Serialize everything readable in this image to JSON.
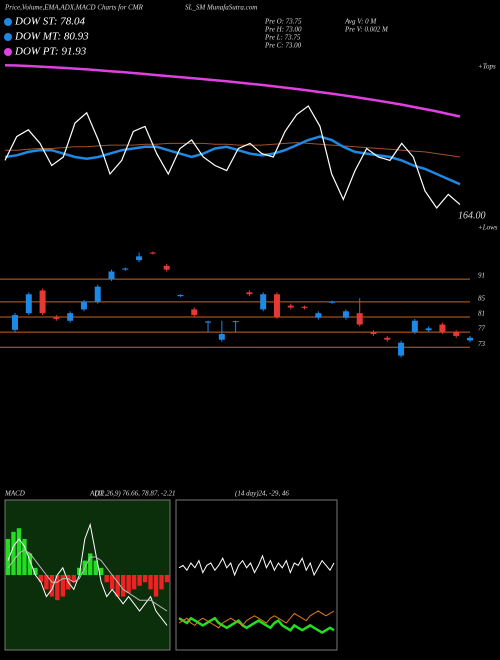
{
  "header": {
    "title": "Price,Volume,EMA,ADX,MACD Charts for CMR",
    "site": "SL_SM MunafaSutra.com",
    "legend": [
      {
        "label": "DOW ST: 78.04",
        "color": "#1e88e5"
      },
      {
        "label": "DOW MT: 80.93",
        "color": "#1e88e5"
      },
      {
        "label": "DOW PT: 91.93",
        "color": "#e040e0"
      }
    ],
    "info": [
      "Pre O: 73.75",
      "Pre H: 73.00",
      "Pre L: 73.75",
      "Pre C: 73.00",
      "Avg V: 0 M",
      "Pre V: 0.002 M"
    ]
  },
  "chart_data": [
    {
      "type": "line",
      "annotations": [
        "164.00",
        "+Tops",
        "+Lows"
      ],
      "ylim": [
        0,
        100
      ],
      "series": [
        {
          "color": "#e040e0",
          "width": 2.5,
          "values": [
            94,
            93.8,
            93.5,
            93.2,
            92.8,
            92.4,
            92,
            91.5,
            91,
            90.5,
            90,
            89.4,
            88.8,
            88.2,
            87.6,
            87,
            86.4,
            85.8,
            85.2,
            84.5,
            83.8,
            83.1,
            82.4,
            81.6,
            80.8,
            80,
            79.1,
            78.2,
            77.3,
            76.3,
            75.3,
            74.2,
            73.1,
            72,
            70.8,
            69.5,
            68.2,
            66.8,
            65.3,
            63.8
          ]
        },
        {
          "color": "#a0522d",
          "width": 1,
          "values": [
            44,
            44,
            44.5,
            45,
            45,
            45.5,
            46,
            46,
            46.5,
            47,
            47,
            47,
            47.5,
            47.5,
            48,
            48,
            48,
            48,
            47.5,
            47.5,
            47,
            47,
            47,
            47.5,
            48,
            48.5,
            48,
            47.5,
            47,
            46.5,
            46,
            45.5,
            45,
            44.5,
            44,
            43.5,
            43,
            42,
            41,
            40
          ]
        },
        {
          "color": "#1e88e5",
          "width": 2.5,
          "values": [
            40,
            41,
            43,
            44,
            44,
            42,
            40,
            39,
            40,
            42,
            44,
            45,
            46,
            46,
            44,
            42,
            40,
            42,
            45,
            46,
            44,
            42,
            41,
            42,
            44,
            47,
            50,
            52,
            50,
            46,
            43,
            42,
            41,
            40,
            38,
            35,
            33,
            30,
            27,
            24
          ]
        },
        {
          "color": "#ffffff",
          "width": 1.2,
          "values": [
            38,
            52,
            56,
            48,
            35,
            40,
            60,
            66,
            50,
            30,
            38,
            55,
            58,
            42,
            30,
            45,
            50,
            40,
            35,
            32,
            45,
            48,
            42,
            40,
            55,
            65,
            70,
            58,
            30,
            15,
            32,
            45,
            40,
            38,
            48,
            40,
            20,
            10,
            18,
            12
          ]
        }
      ]
    },
    {
      "type": "candlestick",
      "ylim": [
        67,
        100
      ],
      "yticks": [
        91,
        85,
        81,
        77,
        73
      ],
      "grid_color": "#c8641e",
      "up_color": "#1e88e5",
      "down_color": "#e53935",
      "open": [
        77.6,
        82,
        88,
        81,
        80,
        83,
        85,
        91,
        93.5,
        96,
        98,
        94.5,
        86.5,
        83,
        79.5,
        75,
        79.8,
        87.5,
        83,
        87,
        84,
        83.7,
        80.8,
        84.8,
        80.8,
        82,
        77,
        75.5,
        70.8,
        77,
        77.5,
        79,
        77,
        74.8
      ],
      "close": [
        81.5,
        87,
        82,
        80.5,
        82,
        85,
        89,
        93,
        93.8,
        97,
        97.8,
        93.5,
        86.8,
        81.5,
        79.8,
        76.5,
        79.9,
        87,
        87,
        81,
        83.5,
        83.4,
        82,
        85,
        82.5,
        79,
        76.5,
        75,
        74.2,
        80,
        78,
        77,
        76,
        75.5
      ],
      "high": [
        82,
        87.5,
        88.5,
        81.5,
        82.5,
        85.5,
        89.5,
        93.5,
        94,
        98,
        98.3,
        95,
        87,
        83.5,
        80,
        80,
        80,
        88,
        87.5,
        87.5,
        84.5,
        84,
        82.5,
        85.3,
        83,
        86,
        77.5,
        76,
        74.7,
        80.5,
        78.5,
        79.5,
        77.5,
        76
      ],
      "low": [
        77,
        81.5,
        81.5,
        80,
        79.5,
        82.5,
        84.5,
        90.5,
        93.2,
        95.5,
        97.5,
        93,
        86.3,
        81,
        77,
        74.5,
        77,
        86.5,
        82.5,
        80.5,
        83,
        83,
        80.3,
        84.5,
        80.3,
        78.5,
        76,
        74.5,
        70.3,
        76.5,
        77,
        76.5,
        75.5,
        74.3
      ]
    },
    {
      "type": "macd",
      "title": "MACD",
      "subtitle": "(12,26,9) 76.66, 78.87, -2.21",
      "ylim": [
        -10,
        10
      ],
      "up_color": "#22dd22",
      "down_color": "#ee2222",
      "series": [
        {
          "style": "bar",
          "values": [
            5,
            6,
            6.5,
            5,
            3,
            1,
            -1,
            -2,
            -3,
            -3.5,
            -3,
            -2,
            -1,
            1,
            2,
            3,
            2,
            1,
            -1,
            -2,
            -3,
            -3,
            -2.5,
            -2,
            -1.5,
            -1,
            -2,
            -3,
            -2,
            -1
          ]
        },
        {
          "style": "line",
          "color": "#ffffff",
          "values": [
            2,
            4,
            5,
            4,
            2,
            0,
            -1,
            -3,
            -2,
            0,
            1,
            -1,
            -2,
            0,
            5,
            7,
            3,
            -1,
            -3,
            -2,
            -3,
            -4,
            -3,
            -4,
            -5,
            -4,
            -3,
            -5,
            -6,
            -7
          ]
        },
        {
          "style": "line",
          "color": "#bbbbbb",
          "values": [
            1,
            2,
            3,
            3.5,
            3,
            2,
            1,
            0,
            -1,
            -1,
            -0.5,
            -0.5,
            -1,
            -0.5,
            1,
            2.5,
            2.5,
            2,
            1,
            0,
            -1,
            -2,
            -2.5,
            -3,
            -3.5,
            -3.5,
            -3.5,
            -4,
            -4.5,
            -5
          ]
        }
      ]
    },
    {
      "type": "line",
      "title": "ADX",
      "subtitle": "(14 day)24, -29, 46",
      "ylim": [
        0,
        60
      ],
      "series": [
        {
          "color": "#ffffff",
          "width": 1,
          "values": [
            33,
            34,
            32,
            35,
            33,
            36,
            31,
            34,
            35,
            32,
            34,
            37,
            33,
            35,
            30,
            34,
            36,
            33,
            35,
            31,
            34,
            38,
            33,
            36,
            32,
            35,
            33,
            36,
            31,
            35,
            34,
            37,
            32,
            35,
            30,
            33,
            36,
            34,
            32,
            35
          ]
        },
        {
          "color": "#22dd22",
          "width": 2.5,
          "values": [
            12,
            11,
            10,
            12,
            11,
            10,
            9,
            10,
            11,
            12,
            10,
            9,
            8,
            9,
            10,
            11,
            9,
            8,
            9,
            10,
            11,
            10,
            9,
            8,
            10,
            11,
            9,
            8,
            7,
            9,
            8,
            7,
            8,
            9,
            8,
            7,
            6,
            7,
            8,
            7
          ]
        },
        {
          "color": "#e07b20",
          "width": 1,
          "values": [
            10,
            11,
            12,
            10,
            9,
            11,
            12,
            11,
            10,
            9,
            8,
            10,
            11,
            12,
            11,
            10,
            9,
            11,
            12,
            13,
            12,
            11,
            10,
            12,
            13,
            12,
            11,
            10,
            12,
            14,
            13,
            12,
            11,
            13,
            14,
            15,
            14,
            13,
            14,
            15
          ]
        }
      ]
    }
  ]
}
